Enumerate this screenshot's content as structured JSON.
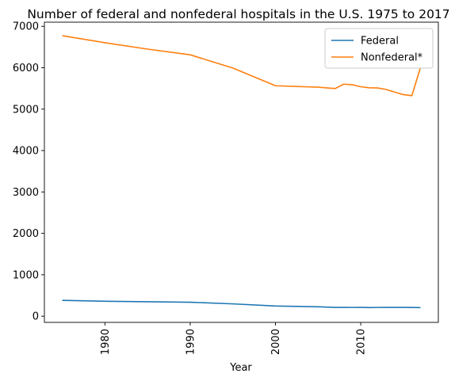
{
  "chart_data": {
    "type": "line",
    "title": "Number of federal and nonfederal hospitals in the U.S. 1975 to 2017",
    "xlabel": "Year",
    "ylabel": "",
    "xlim": [
      1972.9,
      2019.1
    ],
    "ylim": [
      -150,
      7100
    ],
    "xticks": [
      1980,
      1990,
      2000,
      2010
    ],
    "yticks": [
      0,
      1000,
      2000,
      3000,
      4000,
      5000,
      6000,
      7000
    ],
    "legend_position": "top-right",
    "grid": false,
    "series": [
      {
        "name": "Federal",
        "color": "#1f77b4",
        "x": [
          1975,
          1980,
          1985,
          1990,
          1995,
          2000,
          2005,
          2007,
          2008,
          2009,
          2010,
          2011,
          2012,
          2013,
          2014,
          2015,
          2016,
          2017
        ],
        "y": [
          382,
          361,
          348,
          337,
          297,
          245,
          226,
          213,
          213,
          211,
          213,
          208,
          211,
          213,
          213,
          212,
          209,
          208
        ]
      },
      {
        "name": "Nonfederal*",
        "color": "#ff7f0e",
        "x": [
          1975,
          1980,
          1985,
          1990,
          1995,
          2000,
          2005,
          2007,
          2008,
          2009,
          2010,
          2011,
          2012,
          2013,
          2014,
          2015,
          2016,
          2017
        ],
        "y": [
          6774,
          6604,
          6450,
          6312,
          5993,
          5565,
          5530,
          5497,
          5603,
          5590,
          5541,
          5516,
          5511,
          5474,
          5410,
          5350,
          5325,
          6003
        ]
      }
    ]
  }
}
